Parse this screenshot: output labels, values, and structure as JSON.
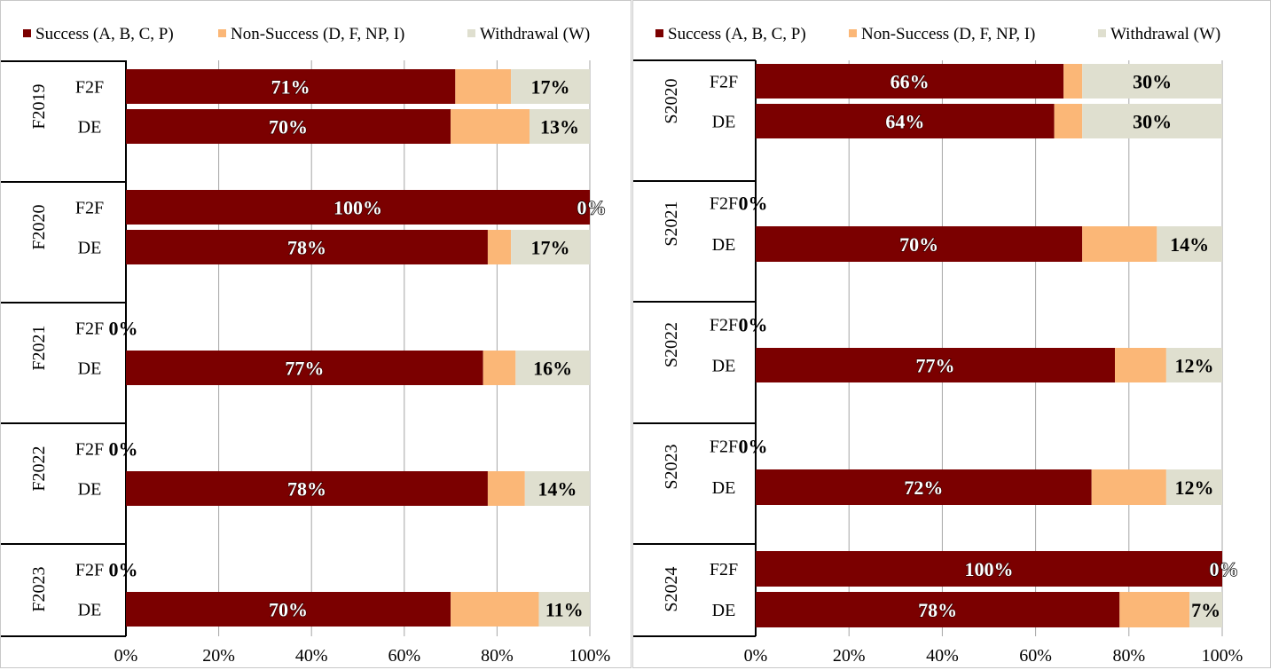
{
  "colors": {
    "success": "#7b0000",
    "non_success": "#fbb777",
    "withdrawal": "#dfdfcf",
    "grid": "#a6a6a6",
    "axis": "#000000"
  },
  "chart_data": [
    {
      "type": "bar",
      "orientation": "horizontal",
      "stacked": "100%",
      "legend": [
        "Success (A, B, C, P)",
        "Non-Success (D, F, NP, I)",
        "Withdrawal (W)"
      ],
      "legend_position": "top",
      "xlim": [
        0,
        100
      ],
      "x_ticks": [
        "0%",
        "20%",
        "40%",
        "60%",
        "80%",
        "100%"
      ],
      "grid": true,
      "groups": [
        {
          "label": "F2019",
          "rows": [
            {
              "label": "F2F",
              "success": 71,
              "non_success": 12,
              "withdrawal": 17,
              "success_label": "71%",
              "withdrawal_label": "17%"
            },
            {
              "label": "DE",
              "success": 70,
              "non_success": 17,
              "withdrawal": 13,
              "success_label": "70%",
              "withdrawal_label": "13%"
            }
          ]
        },
        {
          "label": "F2020",
          "rows": [
            {
              "label": "F2F",
              "success": 100,
              "non_success": 0,
              "withdrawal": 0,
              "success_label": "100%",
              "withdrawal_label": "0%"
            },
            {
              "label": "DE",
              "success": 78,
              "non_success": 5,
              "withdrawal": 17,
              "success_label": "78%",
              "withdrawal_label": "17%"
            }
          ]
        },
        {
          "label": "F2021",
          "rows": [
            {
              "label": "F2F",
              "success": 0,
              "non_success": 0,
              "withdrawal": 0,
              "success_label": "",
              "withdrawal_label": "0%"
            },
            {
              "label": "DE",
              "success": 77,
              "non_success": 7,
              "withdrawal": 16,
              "success_label": "77%",
              "withdrawal_label": "16%"
            }
          ]
        },
        {
          "label": "F2022",
          "rows": [
            {
              "label": "F2F",
              "success": 0,
              "non_success": 0,
              "withdrawal": 0,
              "success_label": "",
              "withdrawal_label": "0%"
            },
            {
              "label": "DE",
              "success": 78,
              "non_success": 8,
              "withdrawal": 14,
              "success_label": "78%",
              "withdrawal_label": "14%"
            }
          ]
        },
        {
          "label": "F2023",
          "rows": [
            {
              "label": "F2F",
              "success": 0,
              "non_success": 0,
              "withdrawal": 0,
              "success_label": "",
              "withdrawal_label": "0%"
            },
            {
              "label": "DE",
              "success": 70,
              "non_success": 19,
              "withdrawal": 11,
              "success_label": "70%",
              "withdrawal_label": "11%"
            }
          ]
        }
      ]
    },
    {
      "type": "bar",
      "orientation": "horizontal",
      "stacked": "100%",
      "legend": [
        "Success (A, B, C, P)",
        "Non-Success (D, F, NP, I)",
        "Withdrawal (W)"
      ],
      "legend_position": "top",
      "xlim": [
        0,
        100
      ],
      "x_ticks": [
        "0%",
        "20%",
        "40%",
        "60%",
        "80%",
        "100%"
      ],
      "grid": true,
      "groups": [
        {
          "label": "S2020",
          "rows": [
            {
              "label": "F2F",
              "success": 66,
              "non_success": 4,
              "withdrawal": 30,
              "success_label": "66%",
              "withdrawal_label": "30%"
            },
            {
              "label": "DE",
              "success": 64,
              "non_success": 6,
              "withdrawal": 30,
              "success_label": "64%",
              "withdrawal_label": "30%"
            }
          ]
        },
        {
          "label": "S2021",
          "rows": [
            {
              "label": "F2F",
              "success": 0,
              "non_success": 0,
              "withdrawal": 0,
              "success_label": "",
              "withdrawal_label": "0%"
            },
            {
              "label": "DE",
              "success": 70,
              "non_success": 16,
              "withdrawal": 14,
              "success_label": "70%",
              "withdrawal_label": "14%"
            }
          ]
        },
        {
          "label": "S2022",
          "rows": [
            {
              "label": "F2F",
              "success": 0,
              "non_success": 0,
              "withdrawal": 0,
              "success_label": "",
              "withdrawal_label": "0%"
            },
            {
              "label": "DE",
              "success": 77,
              "non_success": 11,
              "withdrawal": 12,
              "success_label": "77%",
              "withdrawal_label": "12%"
            }
          ]
        },
        {
          "label": "S2023",
          "rows": [
            {
              "label": "F2F",
              "success": 0,
              "non_success": 0,
              "withdrawal": 0,
              "success_label": "",
              "withdrawal_label": "0%"
            },
            {
              "label": "DE",
              "success": 72,
              "non_success": 16,
              "withdrawal": 12,
              "success_label": "72%",
              "withdrawal_label": "12%"
            }
          ]
        },
        {
          "label": "S2024",
          "rows": [
            {
              "label": "F2F",
              "success": 100,
              "non_success": 0,
              "withdrawal": 0,
              "success_label": "100%",
              "withdrawal_label": "0%"
            },
            {
              "label": "DE",
              "success": 78,
              "non_success": 15,
              "withdrawal": 7,
              "success_label": "78%",
              "withdrawal_label": "7%"
            }
          ]
        }
      ]
    }
  ]
}
